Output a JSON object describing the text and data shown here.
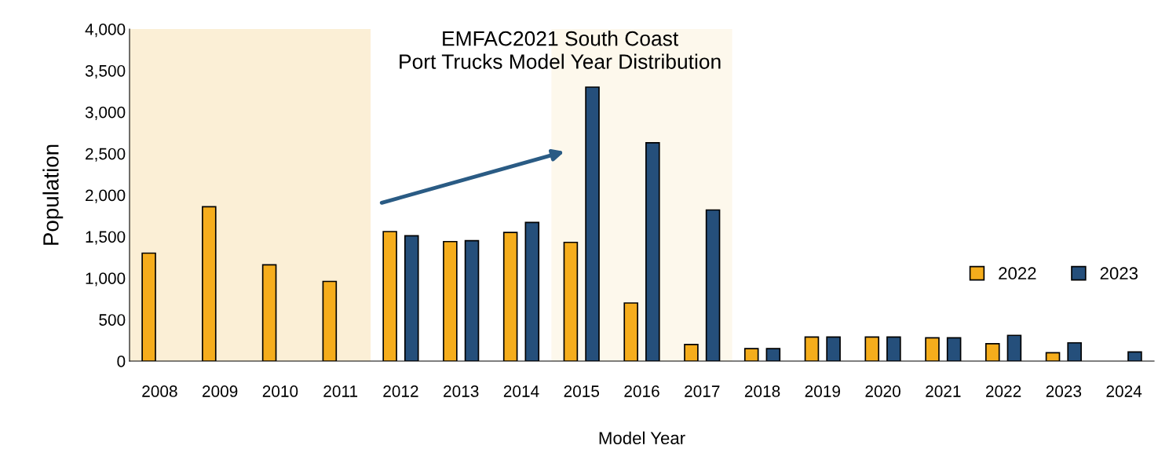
{
  "chart_data": {
    "type": "bar",
    "title": "EMFAC2021 South Coast\nPort Trucks Model Year Distribution",
    "xlabel": "Model Year",
    "ylabel": "Population",
    "categories": [
      "2008",
      "2009",
      "2010",
      "2011",
      "2012",
      "2013",
      "2014",
      "2015",
      "2016",
      "2017",
      "2018",
      "2019",
      "2020",
      "2021",
      "2022",
      "2023",
      "2024"
    ],
    "series": [
      {
        "name": "2022",
        "color": "#f5ad1c",
        "values": [
          1300,
          1860,
          1160,
          960,
          1560,
          1440,
          1550,
          1430,
          700,
          200,
          150,
          290,
          290,
          280,
          210,
          100,
          null
        ]
      },
      {
        "name": "2023",
        "color": "#254f7b",
        "values": [
          null,
          null,
          null,
          null,
          1510,
          1450,
          1670,
          3300,
          2630,
          1820,
          150,
          290,
          290,
          280,
          310,
          220,
          110
        ]
      }
    ],
    "ylim": [
      0,
      4000
    ],
    "yticks": [
      {
        "value": 0,
        "label": "0"
      },
      {
        "value": 500,
        "label": "500"
      },
      {
        "value": 1000,
        "label": "1,000"
      },
      {
        "value": 1500,
        "label": "1,500"
      },
      {
        "value": 2000,
        "label": "2,000"
      },
      {
        "value": 2500,
        "label": "2,500"
      },
      {
        "value": 3000,
        "label": "3,000"
      },
      {
        "value": 3500,
        "label": "3,500"
      },
      {
        "value": 4000,
        "label": "4,000"
      }
    ],
    "bands": [
      {
        "axis": "x",
        "from": "2008",
        "to": "2011",
        "color": "#fbefd6"
      },
      {
        "axis": "x",
        "from": "2015",
        "to": "2017",
        "color": "#fdf8ec"
      }
    ],
    "grid": false,
    "legend": "right"
  }
}
